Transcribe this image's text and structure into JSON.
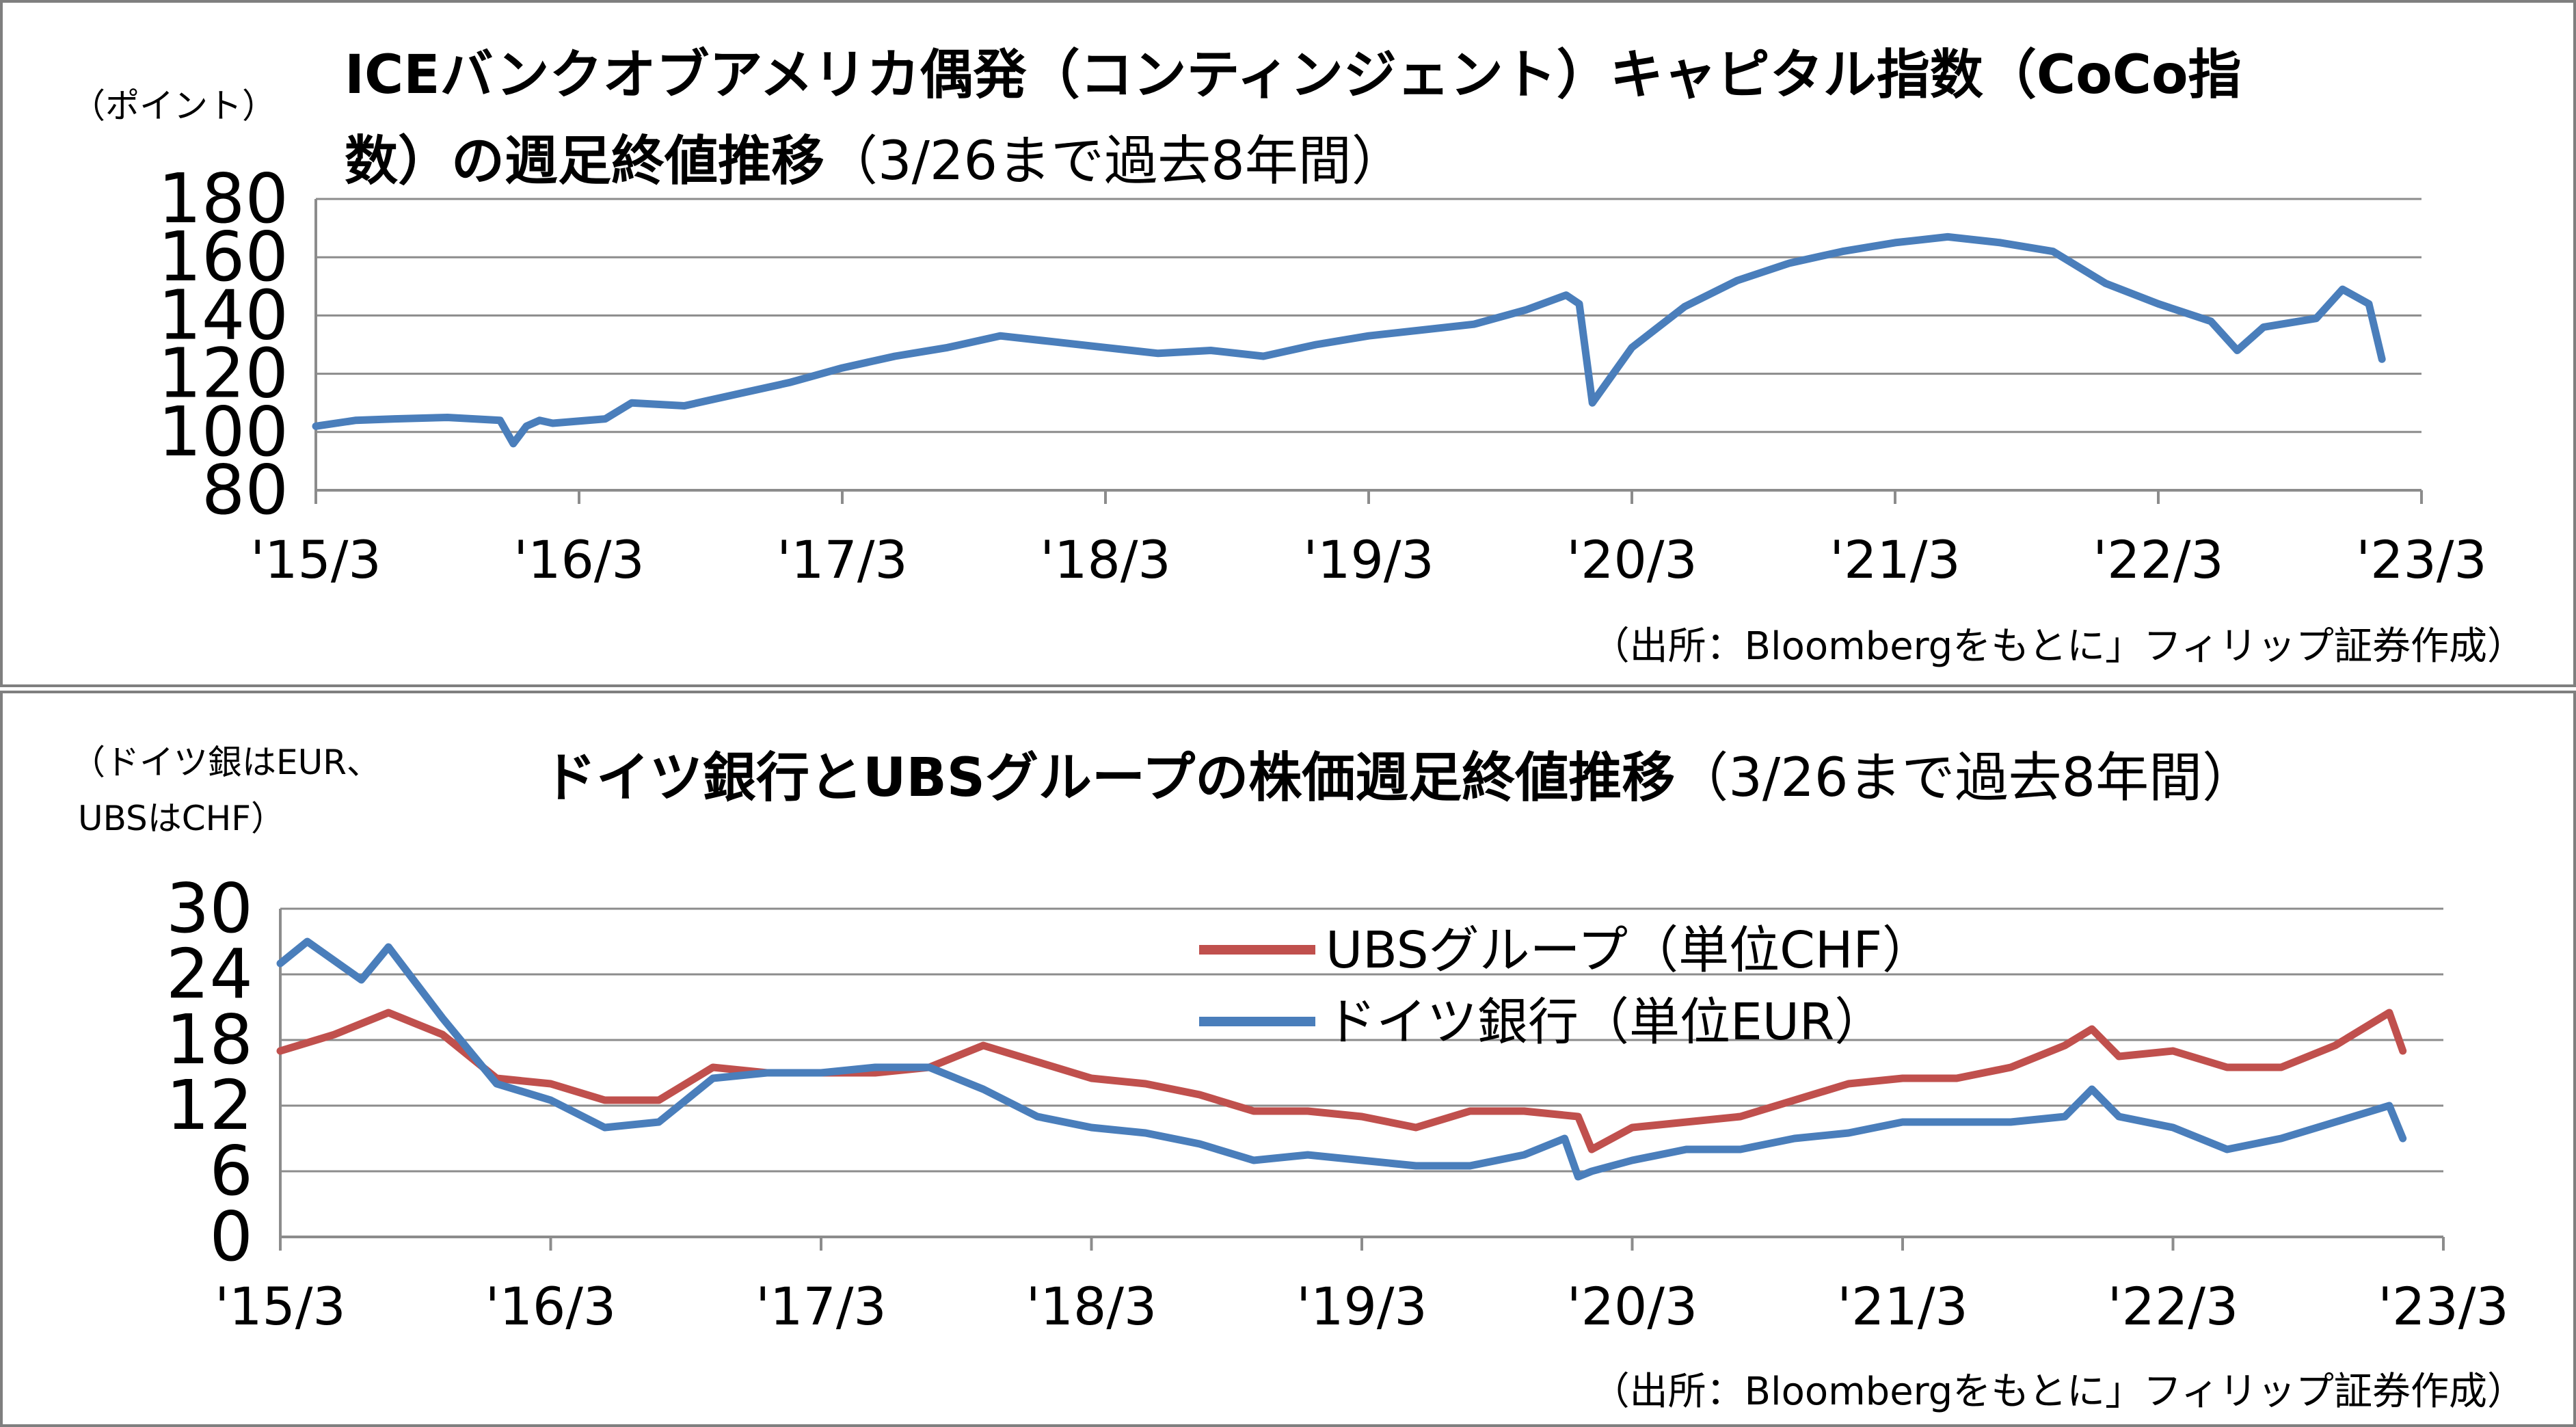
{
  "colors": {
    "blue": "#4a7ebb",
    "red": "#c0504d",
    "grid": "#8c8c8c",
    "axis": "#8c8c8c",
    "border": "#7f7f7f"
  },
  "top": {
    "title_line1": "ICEバンクオブアメリカ偶発（コンティンジェント）キャピタル指数（CoCo指",
    "title_line2_bold": "数）の週足終値推移",
    "title_line2_light": "（3/26まで過去8年間）",
    "y_unit": "（ポイント）",
    "source": "（出所：Bloombergをもとに」フィリップ証券作成）"
  },
  "bottom": {
    "title_bold": "ドイツ銀行とUBSグループの株価週足終値推移",
    "title_light": "（3/26まで過去8年間）",
    "y_unit_line1": "（ドイツ銀はEUR、",
    "y_unit_line2": "UBSはCHF）",
    "source": "（出所：Bloombergをもとに」フィリップ証券作成）"
  },
  "chart_data": [
    {
      "type": "line",
      "title": "ICEバンクオブアメリカ偶発（コンティンジェント）キャピタル指数（CoCo指数）の週足終値推移（3/26まで過去8年間）",
      "ylabel": "（ポイント）",
      "ylim": [
        80,
        180
      ],
      "yticks": [
        "180",
        "160",
        "140",
        "120",
        "100",
        "80"
      ],
      "xtick_labels": [
        "'15/3",
        "'16/3",
        "'17/3",
        "'18/3",
        "'19/3",
        "'20/3",
        "'21/3",
        "'22/3",
        "'23/3"
      ],
      "grid": true,
      "series": [
        {
          "color": "#4a7ebb",
          "x": [
            2015.2,
            2015.35,
            2015.5,
            2015.7,
            2015.9,
            2015.95,
            2016.0,
            2016.05,
            2016.1,
            2016.3,
            2016.4,
            2016.6,
            2016.8,
            2017.0,
            2017.2,
            2017.4,
            2017.6,
            2017.8,
            2018.0,
            2018.2,
            2018.4,
            2018.6,
            2018.8,
            2019.0,
            2019.2,
            2019.4,
            2019.6,
            2019.8,
            2019.95,
            2020.0,
            2020.05,
            2020.2,
            2020.4,
            2020.6,
            2020.8,
            2021.0,
            2021.2,
            2021.4,
            2021.6,
            2021.8,
            2022.0,
            2022.2,
            2022.4,
            2022.5,
            2022.6,
            2022.8,
            2022.9,
            2023.0,
            2023.05
          ],
          "y": [
            102,
            104,
            104.5,
            105,
            104,
            96,
            102,
            104,
            103,
            104.5,
            110,
            109,
            113,
            117,
            122,
            126,
            129,
            133,
            131,
            129,
            127,
            128,
            126,
            130,
            133,
            135,
            137,
            142,
            147,
            144,
            110,
            129,
            143,
            152,
            158,
            162,
            165,
            167,
            165,
            162,
            151,
            144,
            138,
            128,
            136,
            139,
            149,
            144,
            125
          ]
        }
      ]
    },
    {
      "type": "line",
      "title": "ドイツ銀行とUBSグループの株価週足終値推移（3/26まで過去8年間）",
      "ylabel": "（ドイツ銀はEUR、UBSはCHF）",
      "ylim": [
        0,
        30
      ],
      "yticks": [
        "30",
        "24",
        "18",
        "12",
        "6",
        "0"
      ],
      "xtick_labels": [
        "'15/3",
        "'16/3",
        "'17/3",
        "'18/3",
        "'19/3",
        "'20/3",
        "'21/3",
        "'22/3",
        "'23/3"
      ],
      "grid": true,
      "legend_position": "top-center",
      "series": [
        {
          "name": "UBSグループ（単位CHF）",
          "color": "#c0504d",
          "x": [
            2015.2,
            2015.4,
            2015.6,
            2015.8,
            2016.0,
            2016.2,
            2016.4,
            2016.6,
            2016.8,
            2017.0,
            2017.2,
            2017.4,
            2017.6,
            2017.8,
            2018.0,
            2018.2,
            2018.4,
            2018.6,
            2018.8,
            2019.0,
            2019.2,
            2019.4,
            2019.6,
            2019.8,
            2020.0,
            2020.05,
            2020.2,
            2020.4,
            2020.6,
            2020.8,
            2021.0,
            2021.2,
            2021.4,
            2021.6,
            2021.8,
            2021.9,
            2022.0,
            2022.2,
            2022.4,
            2022.6,
            2022.8,
            2023.0,
            2023.05
          ],
          "y": [
            17,
            18.5,
            20.5,
            18.5,
            14.5,
            14,
            12.5,
            12.5,
            15.5,
            15,
            15,
            15,
            15.5,
            17.5,
            16,
            14.5,
            14,
            13,
            11.5,
            11.5,
            11,
            10,
            11.5,
            11.5,
            11,
            8,
            10,
            10.5,
            11,
            12.5,
            14,
            14.5,
            14.5,
            15.5,
            17.5,
            19,
            16.5,
            17,
            15.5,
            15.5,
            17.5,
            20.5,
            17
          ]
        },
        {
          "name": "ドイツ銀行（単位EUR）",
          "color": "#4a7ebb",
          "x": [
            2015.2,
            2015.3,
            2015.5,
            2015.6,
            2015.8,
            2016.0,
            2016.2,
            2016.4,
            2016.6,
            2016.8,
            2017.0,
            2017.2,
            2017.4,
            2017.6,
            2017.8,
            2018.0,
            2018.2,
            2018.4,
            2018.6,
            2018.8,
            2019.0,
            2019.2,
            2019.4,
            2019.6,
            2019.8,
            2019.95,
            2020.0,
            2020.05,
            2020.2,
            2020.4,
            2020.6,
            2020.8,
            2021.0,
            2021.2,
            2021.4,
            2021.6,
            2021.8,
            2021.9,
            2022.0,
            2022.2,
            2022.4,
            2022.6,
            2022.8,
            2023.0,
            2023.05
          ],
          "y": [
            25,
            27,
            23.5,
            26.5,
            20,
            14,
            12.5,
            10,
            10.5,
            14.5,
            15,
            15,
            15.5,
            15.5,
            13.5,
            11,
            10,
            9.5,
            8.5,
            7,
            7.5,
            7,
            6.5,
            6.5,
            7.5,
            9,
            5.5,
            6,
            7,
            8,
            8,
            9,
            9.5,
            10.5,
            10.5,
            10.5,
            11,
            13.5,
            11,
            10,
            8,
            9,
            10.5,
            12,
            9
          ]
        }
      ]
    }
  ]
}
